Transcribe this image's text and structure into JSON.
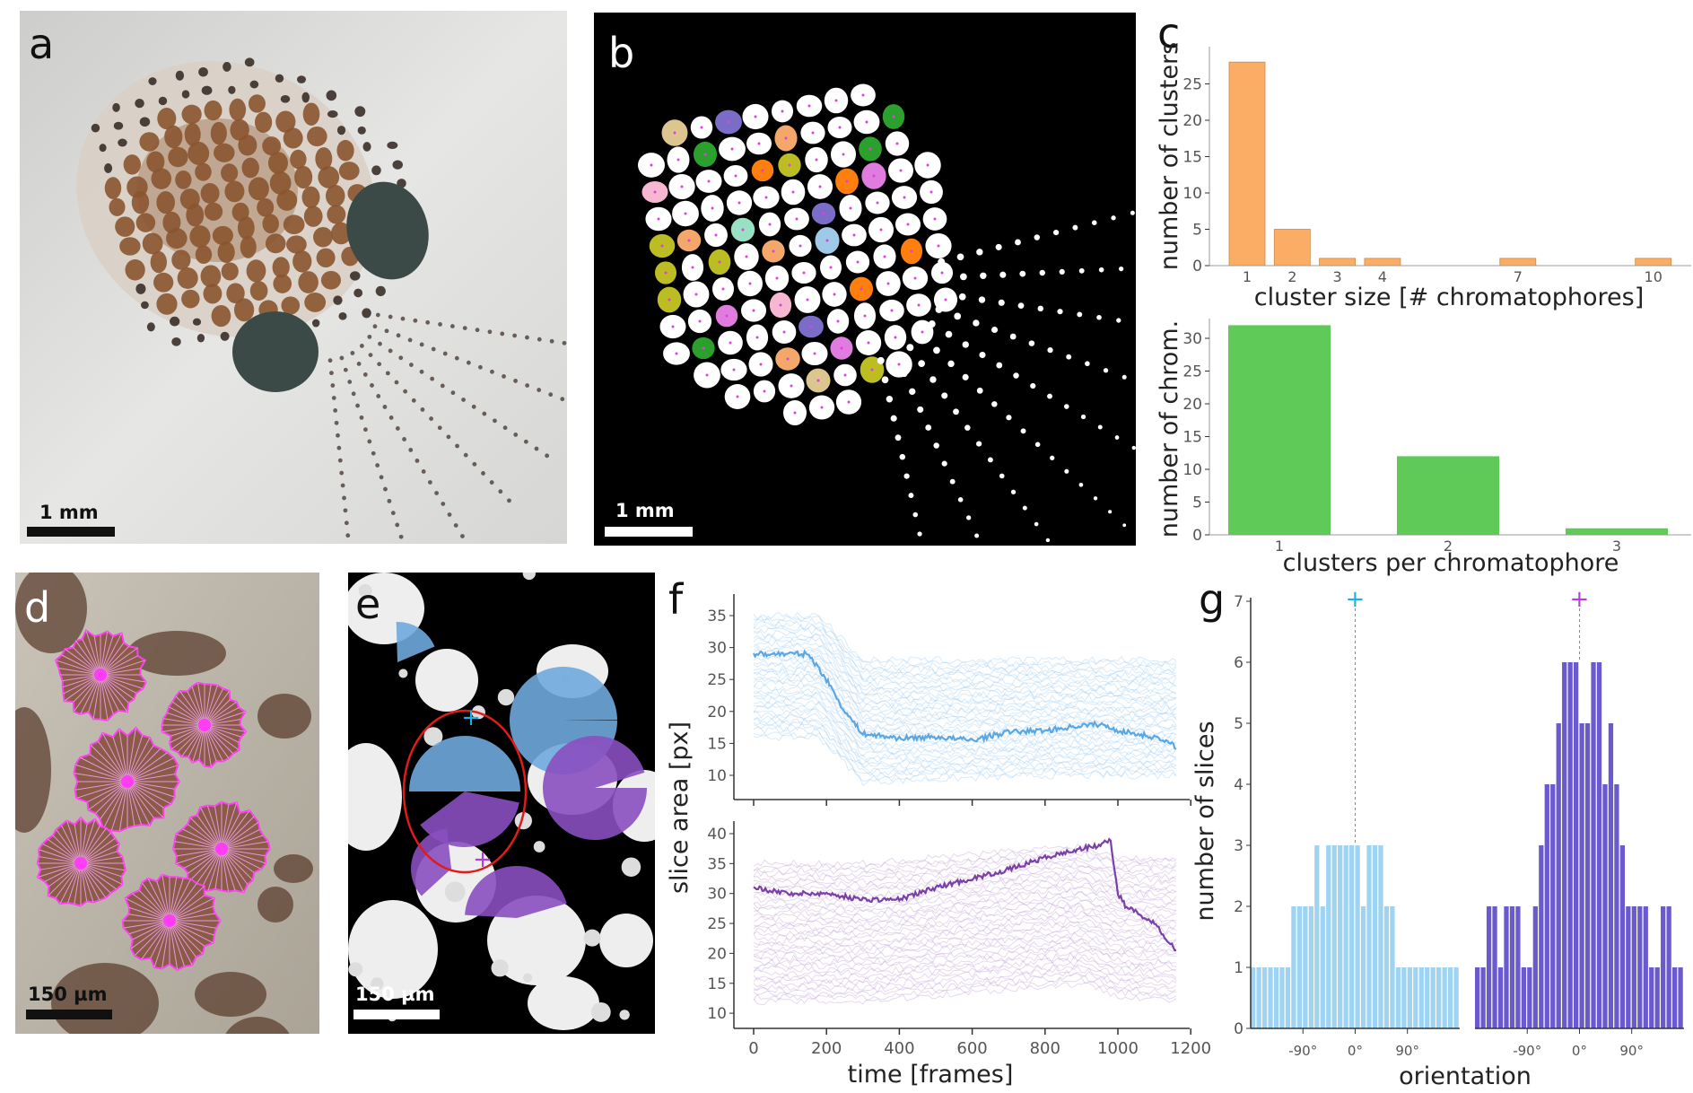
{
  "panels": {
    "a": {
      "label": "a",
      "scale_bar": "1 mm"
    },
    "b": {
      "label": "b",
      "scale_bar": "1 mm"
    },
    "c": {
      "label": "c"
    },
    "d": {
      "label": "d",
      "scale_bar": "150 µm"
    },
    "e": {
      "label": "e",
      "scale_bar": "150 µm"
    },
    "f": {
      "label": "f"
    },
    "g": {
      "label": "g"
    }
  },
  "colors": {
    "orange": "#fbad66",
    "green": "#5fca58",
    "light_blue": "#5aa7e6",
    "purple": "#7b3fa8",
    "hist_blue": "#9fd3f2",
    "hist_purple": "#6a5acd",
    "magenta": "#ff3df5",
    "red_circle": "#e01b1b",
    "cyan_marker": "#1ab0e8",
    "violet_marker": "#b23ee0"
  },
  "chart_data": [
    {
      "id": "c-top",
      "type": "bar",
      "categories": [
        "1",
        "2",
        "3",
        "4",
        "7",
        "10"
      ],
      "values": [
        28,
        5,
        1,
        1,
        1,
        1
      ],
      "xlabel": "cluster size [# chromatophores]",
      "ylabel": "number of clusters",
      "yticks": [
        "0",
        "5",
        "10",
        "15",
        "20",
        "25"
      ],
      "ylim": [
        0,
        30
      ],
      "grid": false
    },
    {
      "id": "c-bottom",
      "type": "bar",
      "categories": [
        "1",
        "2",
        "3"
      ],
      "values": [
        32,
        12,
        1
      ],
      "xlabel": "clusters per chromatophore",
      "ylabel": "number of chrom.",
      "yticks": [
        "0",
        "5",
        "10",
        "15",
        "20",
        "25",
        "30"
      ],
      "ylim": [
        0,
        33
      ],
      "grid": false
    },
    {
      "id": "f",
      "type": "line",
      "xlabel": "time [frames]",
      "ylabel": "slice area [px]",
      "xticks": [
        "0",
        "200",
        "400",
        "600",
        "800",
        "1000",
        "1200"
      ],
      "xlim": [
        0,
        1200
      ],
      "panels": [
        {
          "position": "top",
          "yticks": [
            "10",
            "15",
            "20",
            "25",
            "30",
            "35"
          ],
          "ylim": [
            8,
            38
          ],
          "highlighted_trace": {
            "x": [
              0,
              150,
              200,
              250,
              300,
              400,
              500,
              600,
              700,
              800,
              900,
              950,
              1000,
              1100,
              1160
            ],
            "y": [
              29,
              29,
              25,
              20,
              16.5,
              15.8,
              16,
              15.5,
              16.8,
              17,
              17.8,
              18,
              17,
              16,
              14.5
            ]
          },
          "background_band": {
            "upper": [
              35,
              35,
              28,
              28,
              28
            ],
            "lower": [
              16,
              16,
              9,
              10,
              10
            ],
            "x": [
              0,
              180,
              300,
              800,
              1160
            ]
          }
        },
        {
          "position": "bottom",
          "yticks": [
            "10",
            "15",
            "20",
            "25",
            "30",
            "35",
            "40"
          ],
          "ylim": [
            8,
            41
          ],
          "highlighted_trace": {
            "x": [
              0,
              100,
              200,
              300,
              400,
              500,
              600,
              700,
              800,
              900,
              950,
              980,
              1000,
              1020,
              1100,
              1160
            ],
            "y": [
              31,
              30,
              30,
              29,
              29,
              31,
              32.5,
              34,
              36,
              37.5,
              38,
              39,
              30,
              28,
              25,
              20.5
            ]
          },
          "background_band": {
            "upper": [
              35,
              35,
              38,
              36,
              36
            ],
            "lower": [
              12,
              12,
              15,
              13,
              12
            ],
            "x": [
              0,
              300,
              900,
              1000,
              1160
            ]
          }
        }
      ]
    },
    {
      "id": "g",
      "type": "bar",
      "xlabel": "orientation",
      "ylabel": "number of slices",
      "xticks": [
        "-90°",
        "0°",
        "90°"
      ],
      "yticks": [
        "0",
        "1",
        "2",
        "3",
        "4",
        "5",
        "6",
        "7"
      ],
      "ylim": [
        0,
        7
      ],
      "bin_range": [
        -180,
        180
      ],
      "marker": "+",
      "series": [
        {
          "color": "#9fd3f2",
          "values": [
            1,
            1,
            1,
            1,
            1,
            1,
            1,
            2,
            2,
            2,
            2,
            3,
            2,
            3,
            3,
            3,
            3,
            3,
            3,
            2,
            3,
            3,
            3,
            2,
            2,
            1,
            1,
            1,
            1,
            1,
            1,
            1,
            1,
            1,
            1,
            1
          ]
        },
        {
          "color": "#6a5acd",
          "values": [
            1,
            1,
            2,
            2,
            1,
            2,
            2,
            2,
            1,
            1,
            2,
            3,
            4,
            4,
            5,
            6,
            6,
            6,
            5,
            5,
            6,
            6,
            4,
            5,
            4,
            3,
            2,
            2,
            2,
            2,
            1,
            1,
            2,
            2,
            1,
            1
          ]
        }
      ]
    }
  ]
}
